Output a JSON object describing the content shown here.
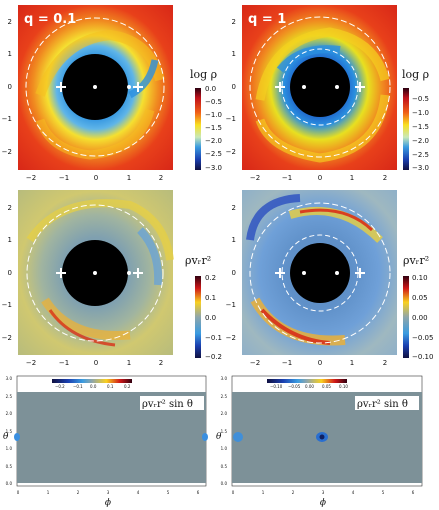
{
  "panels": {
    "p1": {
      "label": "q = 0.1",
      "x_ticks": [
        "−2",
        "−1",
        "0",
        "1",
        "2"
      ],
      "y_ticks": [
        "2",
        "1",
        "0",
        "−1",
        "−2"
      ]
    },
    "p2": {
      "label": "q = 1",
      "x_ticks": [
        "−2",
        "−1",
        "0",
        "1",
        "2"
      ],
      "y_ticks": [
        "2",
        "1",
        "0",
        "−1",
        "−2"
      ]
    },
    "p3": {
      "x_ticks": [
        "−2",
        "−1",
        "0",
        "1",
        "2"
      ],
      "y_ticks": [
        "2",
        "1",
        "0",
        "−1",
        "−2"
      ]
    },
    "p4": {
      "x_ticks": [
        "−2",
        "−1",
        "0",
        "1",
        "2"
      ],
      "y_ticks": [
        "2",
        "1",
        "0",
        "−1",
        "−2"
      ]
    }
  },
  "colorbars": {
    "cb1": {
      "title": "log ρ",
      "ticks": [
        "0.0",
        "−0.5",
        "−1.0",
        "−1.5",
        "−2.0",
        "−2.5",
        "−3.0"
      ]
    },
    "cb2": {
      "title": "log ρ",
      "ticks": [
        "−0.5",
        "−1.0",
        "−1.5",
        "−2.0",
        "−2.5",
        "−3.0"
      ]
    },
    "cb3": {
      "title": "ρvᵣr²",
      "ticks": [
        "0.2",
        "0.1",
        "0.0",
        "−0.1",
        "−0.2"
      ]
    },
    "cb4": {
      "title": "ρvᵣr²",
      "ticks": [
        "0.10",
        "0.05",
        "0.00",
        "−0.05",
        "−0.10"
      ]
    }
  },
  "bottom": {
    "left": {
      "title": "ρvᵣr² sin θ",
      "cb_ticks": [
        "−0.2",
        "−0.1",
        "0.0",
        "0.1",
        "0.2"
      ],
      "y_ticks": [
        "3.0",
        "2.5",
        "2.0",
        "1.5",
        "1.0",
        "0.5",
        "0.0"
      ],
      "x_ticks": [
        "0",
        "1",
        "2",
        "3",
        "4",
        "5",
        "6"
      ],
      "xlabel": "ϕ",
      "ylabel": "θ"
    },
    "right": {
      "title": "ρvᵣr² sin θ",
      "cb_ticks": [
        "−0.10",
        "−0.05",
        "0.00",
        "0.05",
        "0.10"
      ],
      "y_ticks": [
        "3.0",
        "2.5",
        "2.0",
        "1.5",
        "1.0",
        "0.5",
        "0.0"
      ],
      "x_ticks": [
        "0",
        "1",
        "2",
        "3",
        "4",
        "5",
        "6"
      ],
      "xlabel": "ϕ",
      "ylabel": "θ"
    }
  },
  "colors": {
    "hot": "#e8231a",
    "cool": "#2f7fd6",
    "bg_grey": "#7d9198"
  }
}
